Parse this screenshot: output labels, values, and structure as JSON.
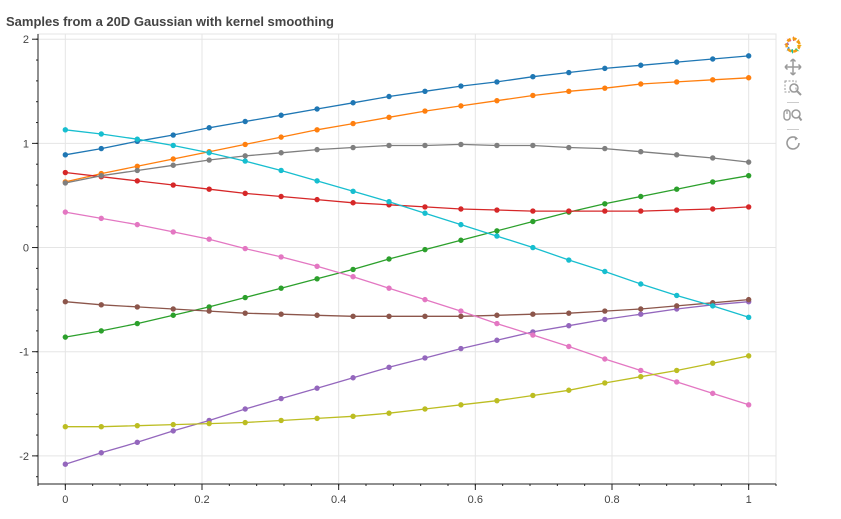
{
  "title": "Samples from a 20D Gaussian with kernel smoothing",
  "toolbar": [
    {
      "name": "bokeh-logo-icon",
      "icon": "bokeh-logo"
    },
    {
      "name": "pan-tool-icon",
      "icon": "pan"
    },
    {
      "name": "box-zoom-tool-icon",
      "icon": "box-zoom"
    },
    {
      "name": "wheel-zoom-tool-icon",
      "icon": "wheel-zoom"
    },
    {
      "name": "reset-tool-icon",
      "icon": "reset"
    }
  ],
  "chart_data": {
    "type": "line",
    "title": "Samples from a 20D Gaussian with kernel smoothing",
    "xlabel": "",
    "ylabel": "",
    "xlim": [
      -0.04,
      1.04
    ],
    "ylim": [
      -2.27,
      2.05
    ],
    "xticks": [
      0,
      0.2,
      0.4,
      0.6,
      0.8,
      1
    ],
    "xtick_labels": [
      "0",
      "0.2",
      "0.4",
      "0.6",
      "0.8",
      "1"
    ],
    "yticks": [
      -2,
      -1,
      0,
      1,
      2
    ],
    "ytick_labels": [
      "-2",
      "-1",
      "0",
      "1",
      "2"
    ],
    "grid": true,
    "x": [
      0,
      0.0526,
      0.1053,
      0.1579,
      0.2105,
      0.2632,
      0.3158,
      0.3684,
      0.4211,
      0.4737,
      0.5263,
      0.5789,
      0.6316,
      0.6842,
      0.7368,
      0.7895,
      0.8421,
      0.8947,
      0.9474,
      1
    ],
    "series": [
      {
        "color": "#1f77b4",
        "values": [
          0.89,
          0.95,
          1.02,
          1.08,
          1.15,
          1.21,
          1.27,
          1.33,
          1.39,
          1.45,
          1.5,
          1.55,
          1.59,
          1.64,
          1.68,
          1.72,
          1.75,
          1.78,
          1.81,
          1.84
        ]
      },
      {
        "color": "#ff7f0e",
        "values": [
          0.63,
          0.71,
          0.78,
          0.85,
          0.92,
          0.99,
          1.06,
          1.13,
          1.19,
          1.25,
          1.31,
          1.36,
          1.41,
          1.46,
          1.5,
          1.53,
          1.57,
          1.59,
          1.61,
          1.63
        ]
      },
      {
        "color": "#2ca02c",
        "values": [
          -0.86,
          -0.8,
          -0.73,
          -0.65,
          -0.57,
          -0.48,
          -0.39,
          -0.3,
          -0.21,
          -0.11,
          -0.02,
          0.07,
          0.16,
          0.25,
          0.34,
          0.42,
          0.49,
          0.56,
          0.63,
          0.69
        ]
      },
      {
        "color": "#d62728",
        "values": [
          0.72,
          0.68,
          0.64,
          0.6,
          0.56,
          0.52,
          0.49,
          0.46,
          0.43,
          0.41,
          0.39,
          0.37,
          0.36,
          0.35,
          0.35,
          0.35,
          0.35,
          0.36,
          0.37,
          0.39
        ]
      },
      {
        "color": "#9467bd",
        "values": [
          -2.08,
          -1.97,
          -1.87,
          -1.76,
          -1.66,
          -1.55,
          -1.45,
          -1.35,
          -1.25,
          -1.15,
          -1.06,
          -0.97,
          -0.89,
          -0.81,
          -0.75,
          -0.69,
          -0.64,
          -0.59,
          -0.55,
          -0.52
        ]
      },
      {
        "color": "#8c564b",
        "values": [
          -0.52,
          -0.55,
          -0.57,
          -0.59,
          -0.61,
          -0.63,
          -0.64,
          -0.65,
          -0.66,
          -0.66,
          -0.66,
          -0.66,
          -0.65,
          -0.64,
          -0.63,
          -0.61,
          -0.59,
          -0.56,
          -0.53,
          -0.5
        ]
      },
      {
        "color": "#e377c2",
        "values": [
          0.34,
          0.28,
          0.22,
          0.15,
          0.08,
          -0.01,
          -0.09,
          -0.18,
          -0.28,
          -0.39,
          -0.5,
          -0.61,
          -0.73,
          -0.84,
          -0.95,
          -1.07,
          -1.18,
          -1.29,
          -1.4,
          -1.51
        ]
      },
      {
        "color": "#7f7f7f",
        "values": [
          0.62,
          0.69,
          0.74,
          0.79,
          0.84,
          0.88,
          0.91,
          0.94,
          0.96,
          0.98,
          0.98,
          0.99,
          0.98,
          0.98,
          0.96,
          0.95,
          0.92,
          0.89,
          0.86,
          0.82
        ]
      },
      {
        "color": "#bcbd22",
        "values": [
          -1.72,
          -1.72,
          -1.71,
          -1.7,
          -1.69,
          -1.68,
          -1.66,
          -1.64,
          -1.62,
          -1.59,
          -1.55,
          -1.51,
          -1.47,
          -1.42,
          -1.37,
          -1.3,
          -1.24,
          -1.18,
          -1.11,
          -1.04
        ]
      },
      {
        "color": "#17becf",
        "values": [
          1.13,
          1.09,
          1.04,
          0.98,
          0.91,
          0.83,
          0.74,
          0.64,
          0.54,
          0.44,
          0.33,
          0.22,
          0.11,
          0.0,
          -0.12,
          -0.23,
          -0.35,
          -0.46,
          -0.56,
          -0.67
        ]
      }
    ]
  }
}
